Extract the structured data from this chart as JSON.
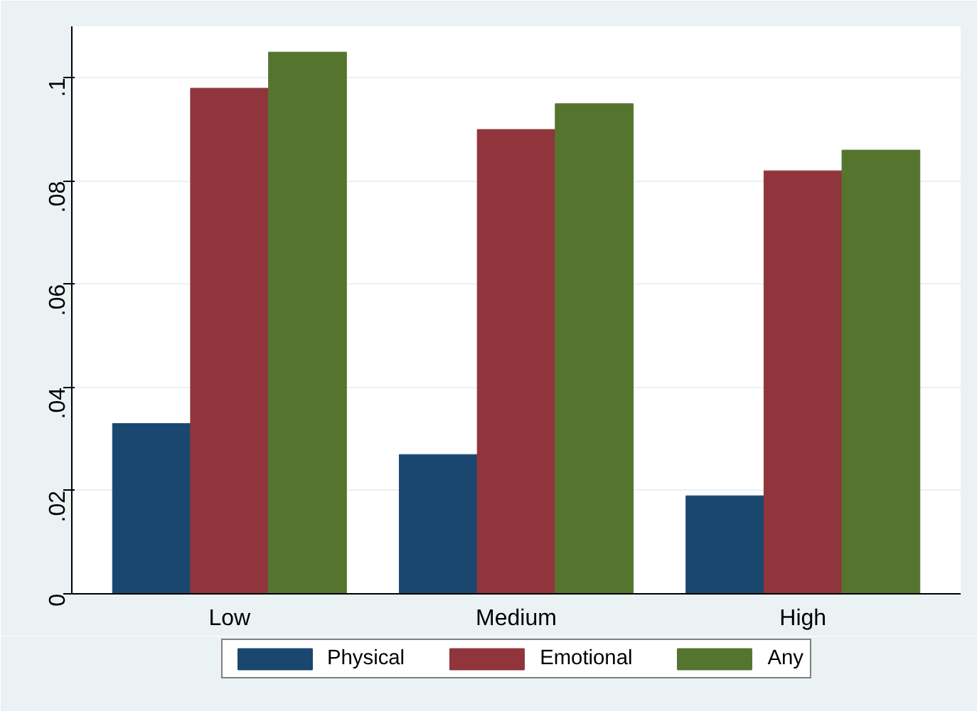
{
  "chart_data": {
    "type": "bar",
    "categories": [
      "Low",
      "Medium",
      "High"
    ],
    "series": [
      {
        "name": "Physical",
        "color": "#1a476f",
        "values": [
          0.033,
          0.027,
          0.019
        ]
      },
      {
        "name": "Emotional",
        "color": "#90353b",
        "values": [
          0.098,
          0.09,
          0.082
        ]
      },
      {
        "name": "Any",
        "color": "#55752f",
        "values": [
          0.105,
          0.095,
          0.086
        ]
      }
    ],
    "ylim": [
      0,
      0.11
    ],
    "yticks": [
      {
        "value": 0,
        "label": "0"
      },
      {
        "value": 0.02,
        "label": ".02"
      },
      {
        "value": 0.04,
        "label": ".04"
      },
      {
        "value": 0.06,
        "label": ".06"
      },
      {
        "value": 0.08,
        "label": ".08"
      },
      {
        "value": 0.1,
        "label": ".1"
      }
    ],
    "grid": "y",
    "legend": "bottom"
  }
}
